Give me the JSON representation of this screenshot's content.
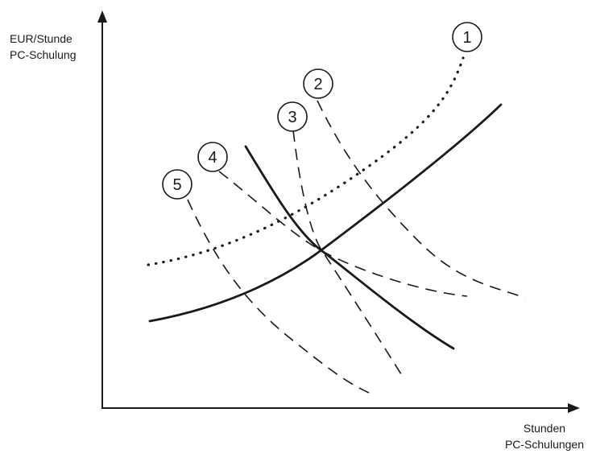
{
  "diagram": {
    "y_axis_label": {
      "line1": "EUR/Stunde",
      "line2": "PC-Schulung"
    },
    "x_axis_label": {
      "line1": "Stunden",
      "line2": "PC-Schulungen"
    },
    "curves": [
      {
        "id": "1",
        "label": "1",
        "style": "dotted"
      },
      {
        "id": "2",
        "label": "2",
        "style": "dashed"
      },
      {
        "id": "3",
        "label": "3",
        "style": "dashed"
      },
      {
        "id": "4",
        "label": "4",
        "style": "dashed"
      },
      {
        "id": "5",
        "label": "5",
        "style": "dashed"
      }
    ],
    "colors": {
      "ink": "#1a1a1a",
      "background": "#ffffff"
    }
  }
}
